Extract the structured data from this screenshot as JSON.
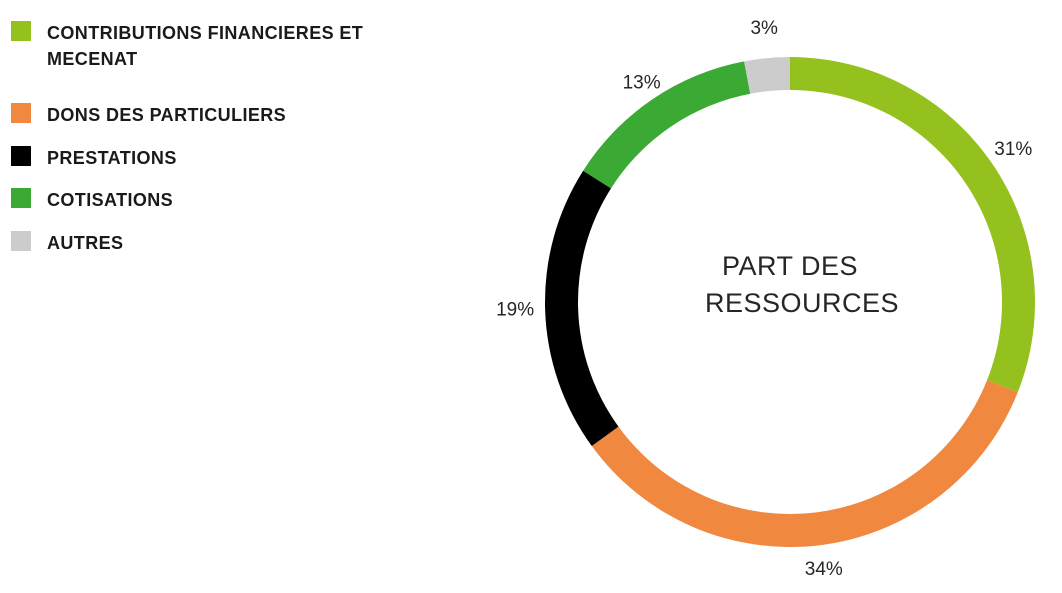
{
  "chart_data": {
    "type": "pie",
    "center_label_lines": [
      "PART DES",
      "RESSOURCES"
    ],
    "legend_position": "top-left",
    "series": [
      {
        "name": "CONTRIBUTIONS FINANCIERES ET\nMECENAT",
        "value": 31,
        "label": "31%",
        "color": "#95c11f"
      },
      {
        "name": "DONS DES PARTICULIERS",
        "value": 34,
        "label": "34%",
        "color": "#f08840"
      },
      {
        "name": "PRESTATIONS",
        "value": 19,
        "label": "19%",
        "color": "#000000"
      },
      {
        "name": "COTISATIONS",
        "value": 13,
        "label": "13%",
        "color": "#3aaa35"
      },
      {
        "name": "AUTRES",
        "value": 3,
        "label": "3%",
        "color": "#cccccc"
      }
    ]
  }
}
